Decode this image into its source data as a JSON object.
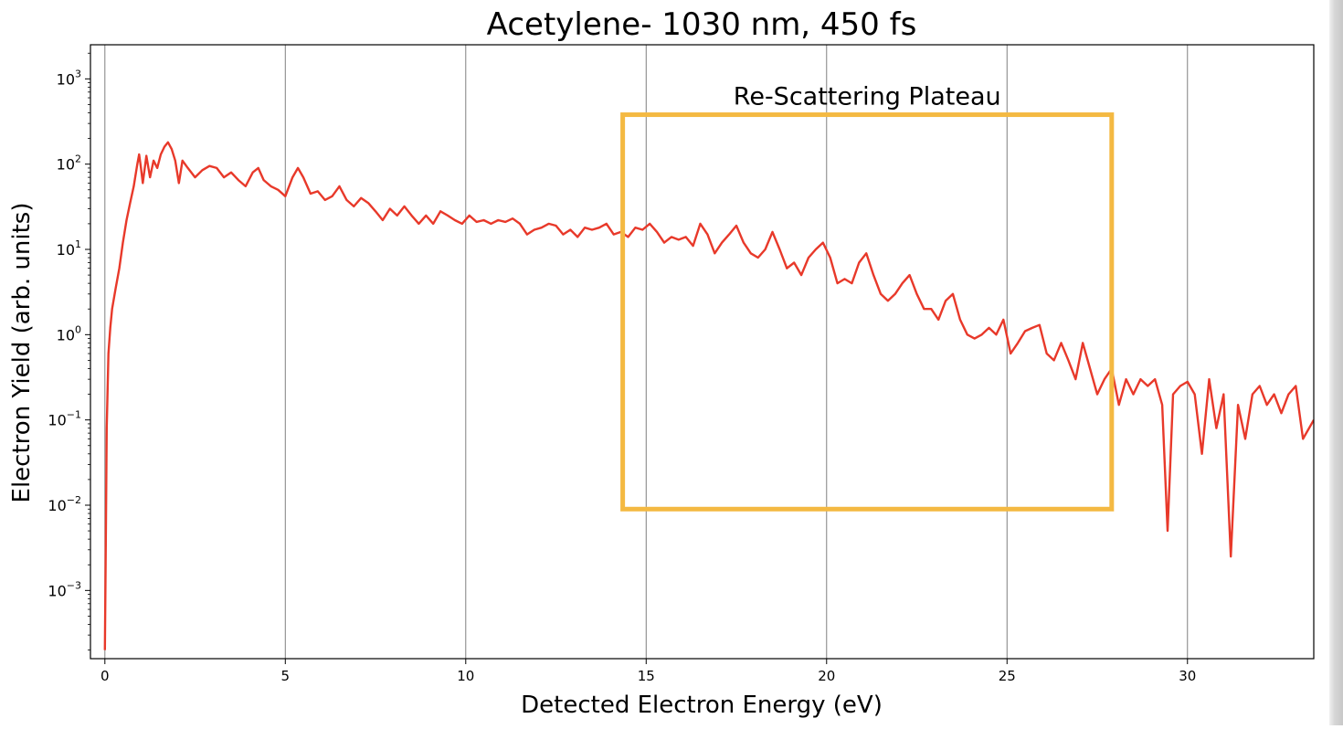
{
  "chart_data": {
    "type": "line",
    "title": "Acetylene- 1030 nm, 450 fs",
    "xlabel": "Detected Electron Energy (eV)",
    "ylabel": "Electron Yield (arb. units)",
    "xlim": [
      -0.4,
      33.5
    ],
    "ylim_log10": [
      -3.8,
      3.4
    ],
    "yscale": "log",
    "x_ticks": [
      0,
      5,
      10,
      15,
      20,
      25,
      30
    ],
    "x_tick_labels": [
      "0",
      "5",
      "10",
      "15",
      "20",
      "25",
      "30"
    ],
    "y_ticks_log10": [
      3,
      2,
      1,
      0,
      -1,
      -2,
      -3
    ],
    "y_tick_labels": [
      {
        "base": "10",
        "exp": "3"
      },
      {
        "base": "10",
        "exp": "2"
      },
      {
        "base": "10",
        "exp": "1"
      },
      {
        "base": "10",
        "exp": "0"
      },
      {
        "base": "10",
        "exp": "−1"
      },
      {
        "base": "10",
        "exp": "−2"
      },
      {
        "base": "10",
        "exp": "−3"
      }
    ],
    "grid": "vertical",
    "line_color": "#e8392a",
    "series": [
      {
        "points": [
          [
            0.0,
            0.0002
          ],
          [
            0.02,
            0.002
          ],
          [
            0.05,
            0.08
          ],
          [
            0.1,
            0.6
          ],
          [
            0.15,
            1.2
          ],
          [
            0.2,
            2.0
          ],
          [
            0.3,
            3.5
          ],
          [
            0.4,
            6.0
          ],
          [
            0.5,
            12.0
          ],
          [
            0.6,
            22.0
          ],
          [
            0.7,
            35.0
          ],
          [
            0.8,
            55.0
          ],
          [
            0.9,
            100.0
          ],
          [
            0.95,
            130.0
          ],
          [
            1.0,
            90.0
          ],
          [
            1.05,
            60.0
          ],
          [
            1.15,
            125.0
          ],
          [
            1.25,
            70.0
          ],
          [
            1.35,
            110.0
          ],
          [
            1.45,
            90.0
          ],
          [
            1.55,
            130.0
          ],
          [
            1.65,
            160.0
          ],
          [
            1.75,
            180.0
          ],
          [
            1.85,
            150.0
          ],
          [
            1.95,
            110.0
          ],
          [
            2.05,
            60.0
          ],
          [
            2.15,
            110.0
          ],
          [
            2.3,
            90.0
          ],
          [
            2.5,
            70.0
          ],
          [
            2.7,
            85.0
          ],
          [
            2.9,
            95.0
          ],
          [
            3.1,
            90.0
          ],
          [
            3.3,
            70.0
          ],
          [
            3.5,
            80.0
          ],
          [
            3.7,
            65.0
          ],
          [
            3.9,
            55.0
          ],
          [
            4.1,
            80.0
          ],
          [
            4.25,
            90.0
          ],
          [
            4.4,
            65.0
          ],
          [
            4.6,
            55.0
          ],
          [
            4.8,
            50.0
          ],
          [
            5.0,
            42.0
          ],
          [
            5.2,
            70.0
          ],
          [
            5.35,
            90.0
          ],
          [
            5.5,
            70.0
          ],
          [
            5.7,
            45.0
          ],
          [
            5.9,
            48.0
          ],
          [
            6.1,
            38.0
          ],
          [
            6.3,
            42.0
          ],
          [
            6.5,
            55.0
          ],
          [
            6.7,
            38.0
          ],
          [
            6.9,
            32.0
          ],
          [
            7.1,
            40.0
          ],
          [
            7.3,
            35.0
          ],
          [
            7.5,
            28.0
          ],
          [
            7.7,
            22.0
          ],
          [
            7.9,
            30.0
          ],
          [
            8.1,
            25.0
          ],
          [
            8.3,
            32.0
          ],
          [
            8.5,
            25.0
          ],
          [
            8.7,
            20.0
          ],
          [
            8.9,
            25.0
          ],
          [
            9.1,
            20.0
          ],
          [
            9.3,
            28.0
          ],
          [
            9.5,
            25.0
          ],
          [
            9.7,
            22.0
          ],
          [
            9.9,
            20.0
          ],
          [
            10.1,
            25.0
          ],
          [
            10.3,
            21.0
          ],
          [
            10.5,
            22.0
          ],
          [
            10.7,
            20.0
          ],
          [
            10.9,
            22.0
          ],
          [
            11.1,
            21.0
          ],
          [
            11.3,
            23.0
          ],
          [
            11.5,
            20.0
          ],
          [
            11.7,
            15.0
          ],
          [
            11.9,
            17.0
          ],
          [
            12.1,
            18.0
          ],
          [
            12.3,
            20.0
          ],
          [
            12.5,
            19.0
          ],
          [
            12.7,
            15.0
          ],
          [
            12.9,
            17.0
          ],
          [
            13.1,
            14.0
          ],
          [
            13.3,
            18.0
          ],
          [
            13.5,
            17.0
          ],
          [
            13.7,
            18.0
          ],
          [
            13.9,
            20.0
          ],
          [
            14.1,
            15.0
          ],
          [
            14.3,
            16.0
          ],
          [
            14.5,
            14.0
          ],
          [
            14.7,
            18.0
          ],
          [
            14.9,
            17.0
          ],
          [
            15.1,
            20.0
          ],
          [
            15.3,
            16.0
          ],
          [
            15.5,
            12.0
          ],
          [
            15.7,
            14.0
          ],
          [
            15.9,
            13.0
          ],
          [
            16.1,
            14.0
          ],
          [
            16.3,
            11.0
          ],
          [
            16.5,
            20.0
          ],
          [
            16.7,
            15.0
          ],
          [
            16.9,
            9.0
          ],
          [
            17.1,
            12.0
          ],
          [
            17.3,
            15.0
          ],
          [
            17.5,
            19.0
          ],
          [
            17.7,
            12.0
          ],
          [
            17.9,
            9.0
          ],
          [
            18.1,
            8.0
          ],
          [
            18.3,
            10.0
          ],
          [
            18.5,
            16.0
          ],
          [
            18.7,
            10.0
          ],
          [
            18.9,
            6.0
          ],
          [
            19.1,
            7.0
          ],
          [
            19.3,
            5.0
          ],
          [
            19.5,
            8.0
          ],
          [
            19.7,
            10.0
          ],
          [
            19.9,
            12.0
          ],
          [
            20.1,
            8.0
          ],
          [
            20.3,
            4.0
          ],
          [
            20.5,
            4.5
          ],
          [
            20.7,
            4.0
          ],
          [
            20.9,
            7.0
          ],
          [
            21.1,
            9.0
          ],
          [
            21.3,
            5.0
          ],
          [
            21.5,
            3.0
          ],
          [
            21.7,
            2.5
          ],
          [
            21.9,
            3.0
          ],
          [
            22.1,
            4.0
          ],
          [
            22.3,
            5.0
          ],
          [
            22.5,
            3.0
          ],
          [
            22.7,
            2.0
          ],
          [
            22.9,
            2.0
          ],
          [
            23.1,
            1.5
          ],
          [
            23.3,
            2.5
          ],
          [
            23.5,
            3.0
          ],
          [
            23.7,
            1.5
          ],
          [
            23.9,
            1.0
          ],
          [
            24.1,
            0.9
          ],
          [
            24.3,
            1.0
          ],
          [
            24.5,
            1.2
          ],
          [
            24.7,
            1.0
          ],
          [
            24.9,
            1.5
          ],
          [
            25.1,
            0.6
          ],
          [
            25.3,
            0.8
          ],
          [
            25.5,
            1.1
          ],
          [
            25.7,
            1.2
          ],
          [
            25.9,
            1.3
          ],
          [
            26.1,
            0.6
          ],
          [
            26.3,
            0.5
          ],
          [
            26.5,
            0.8
          ],
          [
            26.7,
            0.5
          ],
          [
            26.9,
            0.3
          ],
          [
            27.1,
            0.8
          ],
          [
            27.3,
            0.4
          ],
          [
            27.5,
            0.2
          ],
          [
            27.7,
            0.3
          ],
          [
            27.9,
            0.4
          ],
          [
            28.1,
            0.15
          ],
          [
            28.3,
            0.3
          ],
          [
            28.5,
            0.2
          ],
          [
            28.7,
            0.3
          ],
          [
            28.9,
            0.25
          ],
          [
            29.1,
            0.3
          ],
          [
            29.3,
            0.15
          ],
          [
            29.45,
            0.005
          ],
          [
            29.6,
            0.2
          ],
          [
            29.8,
            0.25
          ],
          [
            30.0,
            0.28
          ],
          [
            30.2,
            0.2
          ],
          [
            30.4,
            0.04
          ],
          [
            30.6,
            0.3
          ],
          [
            30.8,
            0.08
          ],
          [
            31.0,
            0.2
          ],
          [
            31.2,
            0.0025
          ],
          [
            31.4,
            0.15
          ],
          [
            31.6,
            0.06
          ],
          [
            31.8,
            0.2
          ],
          [
            32.0,
            0.25
          ],
          [
            32.2,
            0.15
          ],
          [
            32.4,
            0.2
          ],
          [
            32.6,
            0.12
          ],
          [
            32.8,
            0.2
          ],
          [
            33.0,
            0.25
          ],
          [
            33.2,
            0.06
          ],
          [
            33.5,
            0.1
          ]
        ]
      }
    ],
    "annotations": [
      {
        "text": "Re-Scattering Plateau",
        "x_range": [
          14.35,
          27.9
        ],
        "y_range": [
          0.009,
          380
        ],
        "color": "#f4b942"
      }
    ]
  }
}
